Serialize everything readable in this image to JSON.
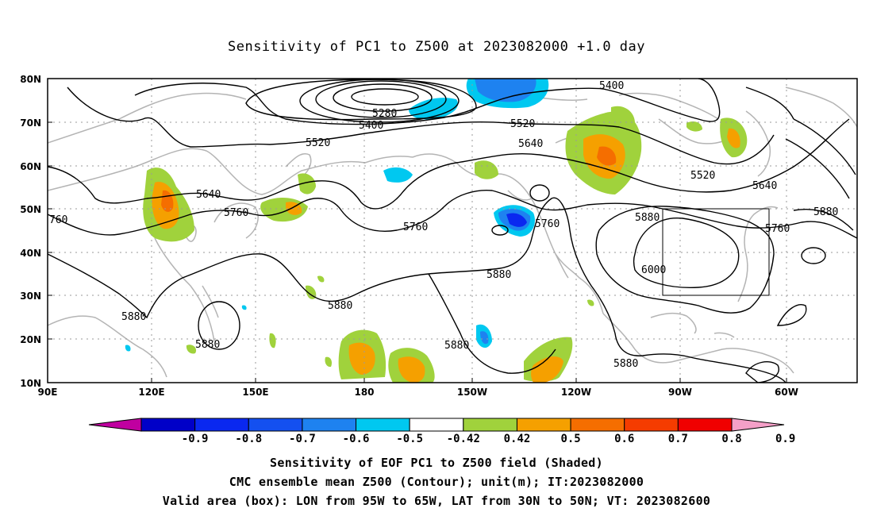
{
  "title": "Sensitivity of PC1 to Z500 at 2023082000 +1.0 day",
  "axes": {
    "lat_labels": [
      "80N",
      "70N",
      "60N",
      "50N",
      "40N",
      "30N",
      "20N",
      "10N"
    ],
    "lon_labels": [
      "90E",
      "120E",
      "150E",
      "180",
      "150W",
      "120W",
      "90W",
      "60W"
    ]
  },
  "contour_labels": {
    "c5280": "5280",
    "c5400a": "5400",
    "c5400b": "5400",
    "c5520a": "5520",
    "c5520b": "5520",
    "c5520c": "5520",
    "c5640a": "5640",
    "c5640b": "5640",
    "c5640c": "5640",
    "c5760a": "5760",
    "c5760b": "5760",
    "c5760c": "5760",
    "c5760d": "5760",
    "c760": "760",
    "c5880a": "5880",
    "c5880b": "5880",
    "c5880c": "5880",
    "c5880d": "5880",
    "c5880e": "5880",
    "c5880f": "5880",
    "c5880g": "5880",
    "c5880h": "5880",
    "c6000": "6000"
  },
  "colorbar": {
    "labels": [
      "-0.9",
      "-0.8",
      "-0.7",
      "-0.6",
      "-0.5",
      "-0.42",
      "0.42",
      "0.5",
      "0.6",
      "0.7",
      "0.8",
      "0.9"
    ],
    "colors": [
      "#c000a0",
      "#0000c8",
      "#0a28f0",
      "#1450f0",
      "#1e82f0",
      "#00c8f0",
      "#ffffff",
      "#a0d23c",
      "#f5a000",
      "#f56e00",
      "#f53c00",
      "#f00000",
      "#f5a0c8"
    ]
  },
  "shading_colors": {
    "green": "#a0d23c",
    "orange": "#f5a000",
    "darkorange": "#f56e00",
    "lightblue": "#00c8f0",
    "blue": "#1e82f0",
    "darkblue": "#0a28f0"
  },
  "captions": {
    "line1": "Sensitivity of EOF PC1 to Z500 field (Shaded)",
    "line2": "CMC ensemble mean Z500 (Contour); unit(m); IT:2023082000",
    "line3": "Valid area (box): LON from 95W to 65W, LAT from 30N to 50N; VT: 2023082600"
  }
}
